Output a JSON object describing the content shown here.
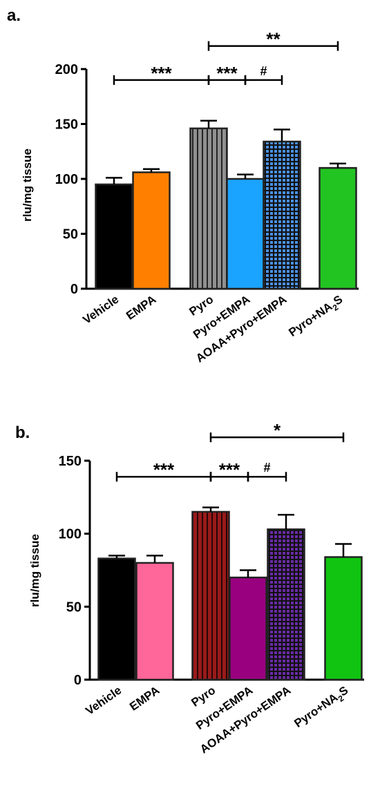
{
  "chart_data": [
    {
      "type": "bar",
      "panel": "a.",
      "ylabel": "rlu/mg tissue",
      "ylim": [
        0,
        200
      ],
      "yticks": [
        "0",
        "50",
        "100",
        "150",
        "200"
      ],
      "categories": [
        "Vehicle",
        "EMPA",
        "Pyro",
        "Pyro+EMPA",
        "AOAA+Pyro+EMPA",
        "Pyro+NA2S"
      ],
      "values": [
        95,
        106,
        146,
        100,
        134,
        110
      ],
      "errors": [
        6,
        3,
        7,
        4,
        11,
        4
      ],
      "colors": [
        "#000000",
        "#ff8000",
        "#909090",
        "#1aa3ff",
        "#4a90e2",
        "#22c422"
      ],
      "patterns": [
        "solid",
        "solid",
        "vlines",
        "solid",
        "grid",
        "solid"
      ],
      "significance": [
        {
          "from": 0,
          "to": 2,
          "label": "***",
          "y": 190
        },
        {
          "from": 2,
          "to": 3,
          "label": "***",
          "y": 190
        },
        {
          "from": 3,
          "to": 4,
          "label": "#",
          "y": 190
        },
        {
          "from": 2,
          "to": 5,
          "label": "**",
          "y": 221
        }
      ]
    },
    {
      "type": "bar",
      "panel": "b.",
      "ylabel": "rlu/mg tissue",
      "ylim": [
        0,
        150
      ],
      "yticks": [
        "0",
        "50",
        "100",
        "150"
      ],
      "categories": [
        "Vehicle",
        "EMPA",
        "Pyro",
        "Pyro+EMPA",
        "AOAA+Pyro+EMPA",
        "Pyro+NA2S"
      ],
      "values": [
        83,
        80,
        115,
        70,
        103,
        84
      ],
      "errors": [
        2,
        5,
        3,
        5,
        10,
        9
      ],
      "colors": [
        "#000000",
        "#ff6699",
        "#991a1a",
        "#990080",
        "#6a2aa6",
        "#11c411"
      ],
      "patterns": [
        "solid",
        "solid",
        "vlines",
        "solid",
        "grid",
        "solid"
      ],
      "significance": [
        {
          "from": 0,
          "to": 2,
          "label": "***",
          "y": 139
        },
        {
          "from": 2,
          "to": 3,
          "label": "***",
          "y": 139
        },
        {
          "from": 3,
          "to": 4,
          "label": "#",
          "y": 139
        },
        {
          "from": 2,
          "to": 5,
          "label": "*",
          "y": 166
        }
      ]
    }
  ]
}
